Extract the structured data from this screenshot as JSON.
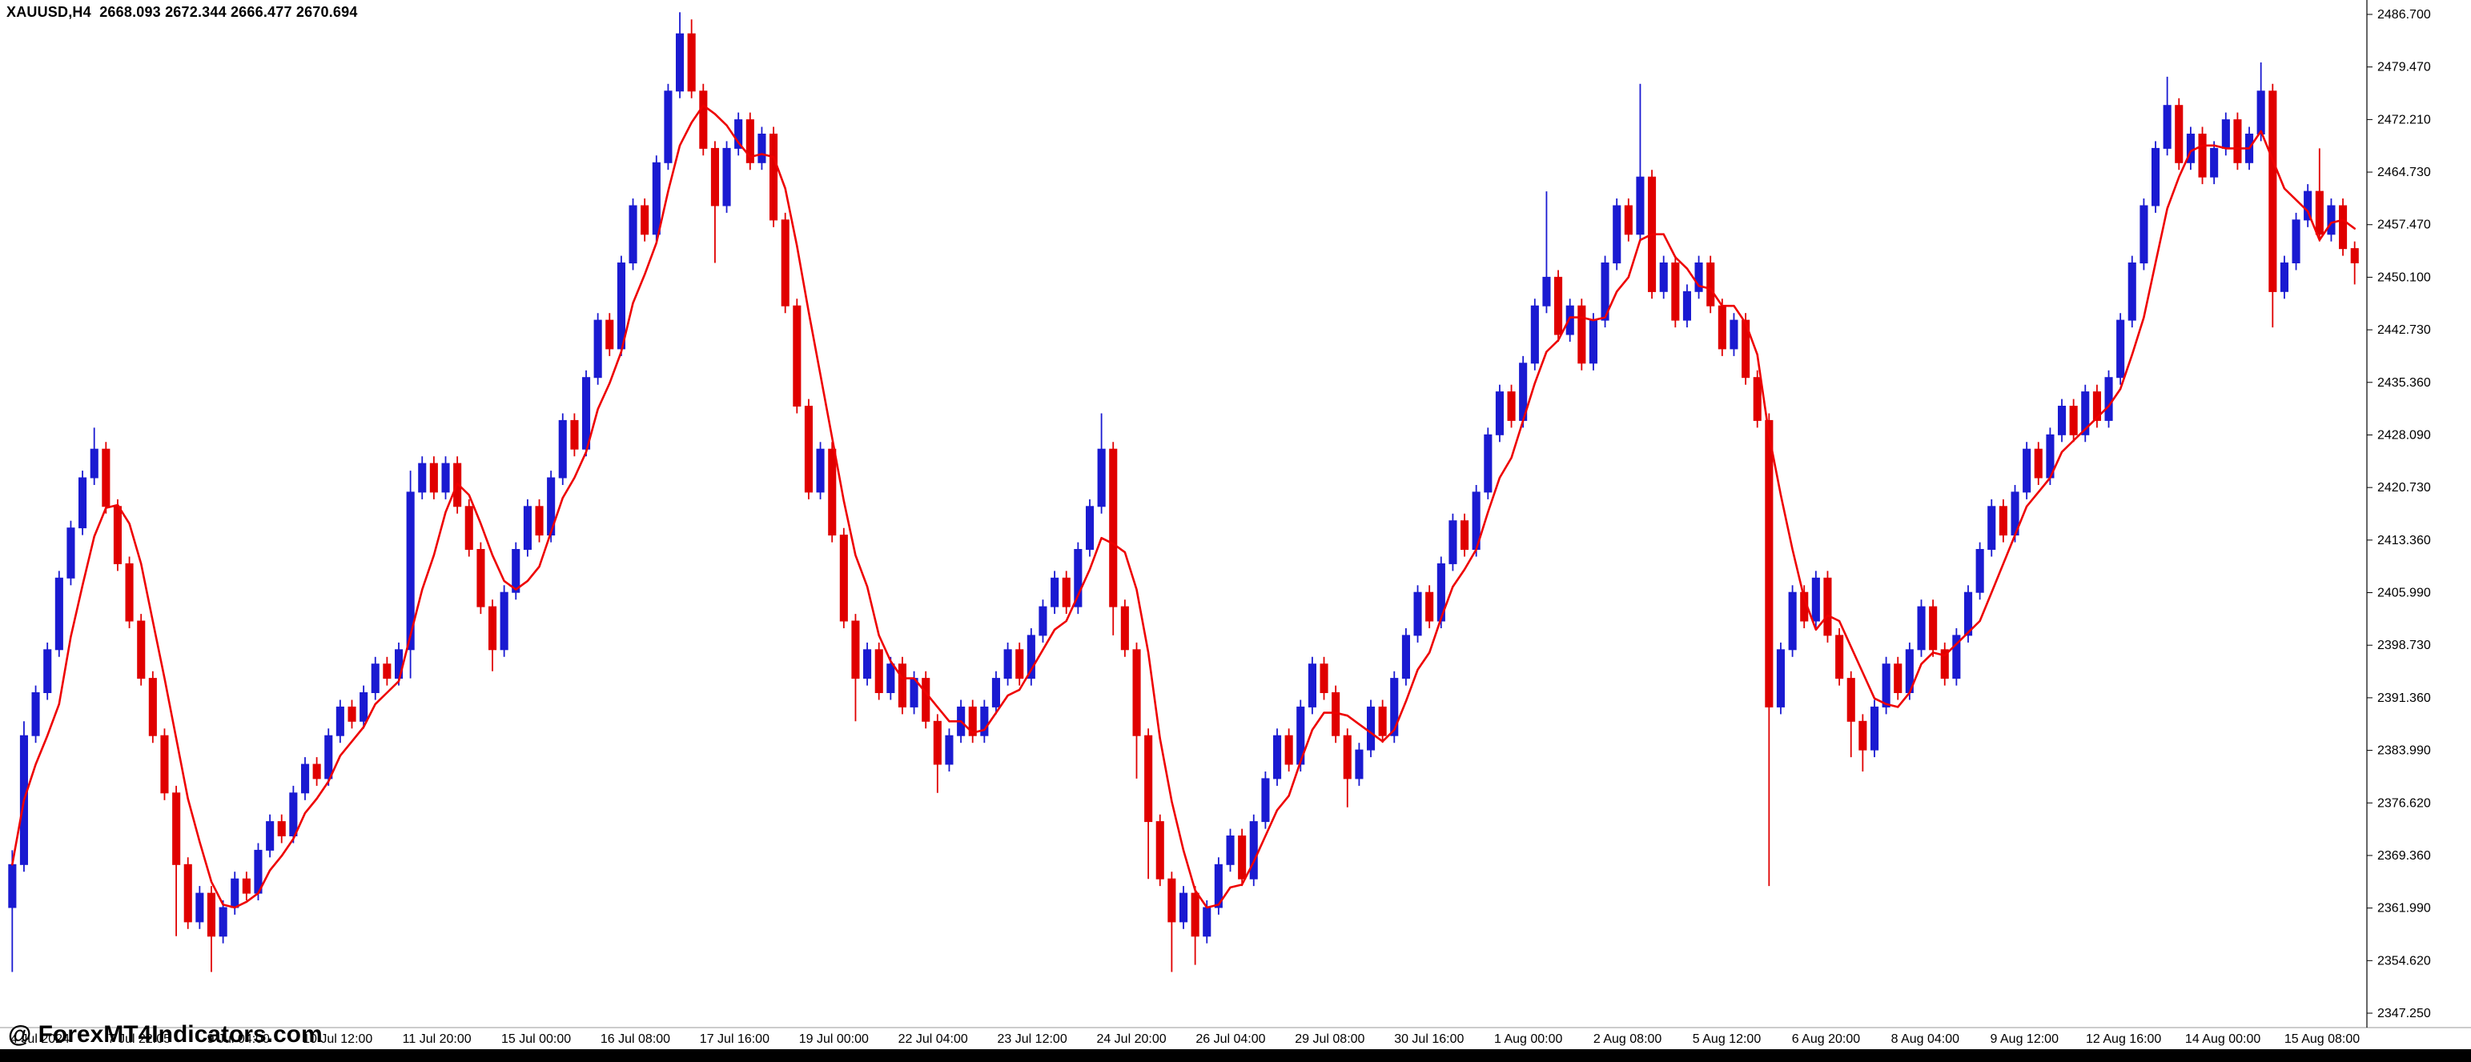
{
  "window": {
    "quote_line": "XAUUSD,H4  2668.093 2672.344 2666.477 2670.694",
    "watermark": "@ ForexMT4Indicators.com"
  },
  "colors": {
    "background": "#ffffff",
    "axis": "#000000",
    "up": "#1a1ad1",
    "down": "#e00000",
    "indicator_line": "#ee0000",
    "bottom_bar": "#000000"
  },
  "chart_data": {
    "type": "candlestick",
    "title": "XAUUSD,H4",
    "symbol": "XAUUSD",
    "timeframe": "H4",
    "quote": {
      "open": "2668.093",
      "high": "2672.344",
      "low": "2666.477",
      "close": "2670.694"
    },
    "grid": false,
    "legend": "none",
    "up_color": "#1a1ad1",
    "down_color": "#e00000",
    "overlay_line": {
      "name": "moving-average",
      "period": 5,
      "color": "#ee0000"
    },
    "ylim": [
      2345.5,
      2488.5
    ],
    "y_ticks": [
      "2486.700",
      "2479.470",
      "2472.210",
      "2464.730",
      "2457.470",
      "2450.100",
      "2442.730",
      "2435.360",
      "2428.090",
      "2420.730",
      "2413.360",
      "2405.990",
      "2398.730",
      "2391.360",
      "2383.990",
      "2376.620",
      "2369.360",
      "2361.990",
      "2354.620",
      "2347.250"
    ],
    "x_labels": [
      "4 Jul 2024",
      "7 Jul 22:05",
      "9 Jul 04:00",
      "10 Jul 12:00",
      "11 Jul 20:00",
      "15 Jul 00:00",
      "16 Jul 08:00",
      "17 Jul 16:00",
      "19 Jul 00:00",
      "22 Jul 04:00",
      "23 Jul 12:00",
      "24 Jul 20:00",
      "26 Jul 04:00",
      "29 Jul 08:00",
      "30 Jul 16:00",
      "1 Aug 00:00",
      "2 Aug 08:00",
      "5 Aug 12:00",
      "6 Aug 20:00",
      "8 Aug 04:00",
      "9 Aug 12:00",
      "12 Aug 16:00",
      "14 Aug 00:00",
      "15 Aug 08:00"
    ],
    "ohlc": [
      [
        2362,
        2370,
        2353,
        2368
      ],
      [
        2368,
        2388,
        2367,
        2386
      ],
      [
        2386,
        2393,
        2385,
        2392
      ],
      [
        2392,
        2399,
        2391,
        2398
      ],
      [
        2398,
        2409,
        2397,
        2408
      ],
      [
        2408,
        2416,
        2407,
        2415
      ],
      [
        2415,
        2423,
        2414,
        2422
      ],
      [
        2422,
        2429,
        2421,
        2426
      ],
      [
        2426,
        2427,
        2417,
        2418
      ],
      [
        2418,
        2419,
        2409,
        2410
      ],
      [
        2410,
        2411,
        2401,
        2402
      ],
      [
        2402,
        2403,
        2393,
        2394
      ],
      [
        2394,
        2395,
        2385,
        2386
      ],
      [
        2386,
        2387,
        2377,
        2378
      ],
      [
        2378,
        2379,
        2358,
        2368
      ],
      [
        2368,
        2369,
        2359,
        2360
      ],
      [
        2360,
        2365,
        2359,
        2364
      ],
      [
        2364,
        2365,
        2353,
        2358
      ],
      [
        2358,
        2363,
        2357,
        2362
      ],
      [
        2362,
        2367,
        2361,
        2366
      ],
      [
        2366,
        2367,
        2363,
        2364
      ],
      [
        2364,
        2371,
        2363,
        2370
      ],
      [
        2370,
        2375,
        2369,
        2374
      ],
      [
        2374,
        2375,
        2371,
        2372
      ],
      [
        2372,
        2379,
        2371,
        2378
      ],
      [
        2378,
        2383,
        2377,
        2382
      ],
      [
        2382,
        2383,
        2379,
        2380
      ],
      [
        2380,
        2387,
        2379,
        2386
      ],
      [
        2386,
        2391,
        2385,
        2390
      ],
      [
        2390,
        2391,
        2387,
        2388
      ],
      [
        2388,
        2393,
        2387,
        2392
      ],
      [
        2392,
        2397,
        2391,
        2396
      ],
      [
        2396,
        2397,
        2393,
        2394
      ],
      [
        2394,
        2399,
        2393,
        2398
      ],
      [
        2398,
        2423,
        2394,
        2420
      ],
      [
        2420,
        2425,
        2419,
        2424
      ],
      [
        2424,
        2425,
        2419,
        2420
      ],
      [
        2420,
        2425,
        2419,
        2424
      ],
      [
        2424,
        2425,
        2417,
        2418
      ],
      [
        2418,
        2419,
        2411,
        2412
      ],
      [
        2412,
        2413,
        2403,
        2404
      ],
      [
        2404,
        2405,
        2395,
        2398
      ],
      [
        2398,
        2407,
        2397,
        2406
      ],
      [
        2406,
        2413,
        2405,
        2412
      ],
      [
        2412,
        2419,
        2411,
        2418
      ],
      [
        2418,
        2419,
        2413,
        2414
      ],
      [
        2414,
        2423,
        2413,
        2422
      ],
      [
        2422,
        2431,
        2421,
        2430
      ],
      [
        2430,
        2431,
        2425,
        2426
      ],
      [
        2426,
        2437,
        2425,
        2436
      ],
      [
        2436,
        2445,
        2435,
        2444
      ],
      [
        2444,
        2445,
        2439,
        2440
      ],
      [
        2440,
        2453,
        2439,
        2452
      ],
      [
        2452,
        2461,
        2451,
        2460
      ],
      [
        2460,
        2461,
        2455,
        2456
      ],
      [
        2456,
        2467,
        2455,
        2466
      ],
      [
        2466,
        2477,
        2465,
        2476
      ],
      [
        2476,
        2487,
        2475,
        2484
      ],
      [
        2484,
        2486,
        2475,
        2476
      ],
      [
        2476,
        2477,
        2467,
        2468
      ],
      [
        2468,
        2469,
        2452,
        2460
      ],
      [
        2460,
        2469,
        2459,
        2468
      ],
      [
        2468,
        2473,
        2467,
        2472
      ],
      [
        2472,
        2473,
        2465,
        2466
      ],
      [
        2466,
        2471,
        2465,
        2470
      ],
      [
        2470,
        2471,
        2457,
        2458
      ],
      [
        2458,
        2459,
        2445,
        2446
      ],
      [
        2446,
        2447,
        2431,
        2432
      ],
      [
        2432,
        2433,
        2419,
        2420
      ],
      [
        2420,
        2427,
        2419,
        2426
      ],
      [
        2426,
        2427,
        2413,
        2414
      ],
      [
        2414,
        2415,
        2401,
        2402
      ],
      [
        2402,
        2403,
        2388,
        2394
      ],
      [
        2394,
        2399,
        2393,
        2398
      ],
      [
        2398,
        2399,
        2391,
        2392
      ],
      [
        2392,
        2397,
        2391,
        2396
      ],
      [
        2396,
        2397,
        2389,
        2390
      ],
      [
        2390,
        2395,
        2389,
        2394
      ],
      [
        2394,
        2395,
        2387,
        2388
      ],
      [
        2388,
        2389,
        2378,
        2382
      ],
      [
        2382,
        2387,
        2381,
        2386
      ],
      [
        2386,
        2391,
        2385,
        2390
      ],
      [
        2390,
        2391,
        2385,
        2386
      ],
      [
        2386,
        2391,
        2385,
        2390
      ],
      [
        2390,
        2395,
        2389,
        2394
      ],
      [
        2394,
        2399,
        2393,
        2398
      ],
      [
        2398,
        2399,
        2393,
        2394
      ],
      [
        2394,
        2401,
        2393,
        2400
      ],
      [
        2400,
        2405,
        2399,
        2404
      ],
      [
        2404,
        2409,
        2403,
        2408
      ],
      [
        2408,
        2409,
        2403,
        2404
      ],
      [
        2404,
        2413,
        2403,
        2412
      ],
      [
        2412,
        2419,
        2411,
        2418
      ],
      [
        2418,
        2431,
        2417,
        2426
      ],
      [
        2426,
        2427,
        2400,
        2404
      ],
      [
        2404,
        2405,
        2397,
        2398
      ],
      [
        2398,
        2399,
        2380,
        2386
      ],
      [
        2386,
        2387,
        2366,
        2374
      ],
      [
        2374,
        2375,
        2365,
        2366
      ],
      [
        2366,
        2367,
        2353,
        2360
      ],
      [
        2360,
        2365,
        2359,
        2364
      ],
      [
        2364,
        2365,
        2354,
        2358
      ],
      [
        2358,
        2363,
        2357,
        2362
      ],
      [
        2362,
        2369,
        2361,
        2368
      ],
      [
        2368,
        2373,
        2367,
        2372
      ],
      [
        2372,
        2373,
        2365,
        2366
      ],
      [
        2366,
        2375,
        2365,
        2374
      ],
      [
        2374,
        2381,
        2373,
        2380
      ],
      [
        2380,
        2387,
        2379,
        2386
      ],
      [
        2386,
        2387,
        2381,
        2382
      ],
      [
        2382,
        2391,
        2381,
        2390
      ],
      [
        2390,
        2397,
        2389,
        2396
      ],
      [
        2396,
        2397,
        2391,
        2392
      ],
      [
        2392,
        2393,
        2385,
        2386
      ],
      [
        2386,
        2387,
        2376,
        2380
      ],
      [
        2380,
        2385,
        2379,
        2384
      ],
      [
        2384,
        2391,
        2383,
        2390
      ],
      [
        2390,
        2391,
        2385,
        2386
      ],
      [
        2386,
        2395,
        2385,
        2394
      ],
      [
        2394,
        2401,
        2393,
        2400
      ],
      [
        2400,
        2407,
        2399,
        2406
      ],
      [
        2406,
        2407,
        2401,
        2402
      ],
      [
        2402,
        2411,
        2401,
        2410
      ],
      [
        2410,
        2417,
        2409,
        2416
      ],
      [
        2416,
        2417,
        2411,
        2412
      ],
      [
        2412,
        2421,
        2411,
        2420
      ],
      [
        2420,
        2429,
        2419,
        2428
      ],
      [
        2428,
        2435,
        2427,
        2434
      ],
      [
        2434,
        2435,
        2429,
        2430
      ],
      [
        2430,
        2439,
        2429,
        2438
      ],
      [
        2438,
        2447,
        2437,
        2446
      ],
      [
        2446,
        2462,
        2445,
        2450
      ],
      [
        2450,
        2451,
        2441,
        2442
      ],
      [
        2442,
        2447,
        2441,
        2446
      ],
      [
        2446,
        2447,
        2437,
        2438
      ],
      [
        2438,
        2445,
        2437,
        2444
      ],
      [
        2444,
        2453,
        2443,
        2452
      ],
      [
        2452,
        2461,
        2451,
        2460
      ],
      [
        2460,
        2461,
        2455,
        2456
      ],
      [
        2456,
        2477,
        2455,
        2464
      ],
      [
        2464,
        2465,
        2447,
        2448
      ],
      [
        2448,
        2453,
        2447,
        2452
      ],
      [
        2452,
        2453,
        2443,
        2444
      ],
      [
        2444,
        2449,
        2443,
        2448
      ],
      [
        2448,
        2453,
        2447,
        2452
      ],
      [
        2452,
        2453,
        2445,
        2446
      ],
      [
        2446,
        2447,
        2439,
        2440
      ],
      [
        2440,
        2445,
        2439,
        2444
      ],
      [
        2444,
        2445,
        2435,
        2436
      ],
      [
        2436,
        2437,
        2429,
        2430
      ],
      [
        2430,
        2431,
        2365,
        2390
      ],
      [
        2390,
        2399,
        2389,
        2398
      ],
      [
        2398,
        2407,
        2397,
        2406
      ],
      [
        2406,
        2407,
        2401,
        2402
      ],
      [
        2402,
        2409,
        2401,
        2408
      ],
      [
        2408,
        2409,
        2399,
        2400
      ],
      [
        2400,
        2401,
        2393,
        2394
      ],
      [
        2394,
        2395,
        2383,
        2388
      ],
      [
        2388,
        2389,
        2381,
        2384
      ],
      [
        2384,
        2391,
        2383,
        2390
      ],
      [
        2390,
        2397,
        2389,
        2396
      ],
      [
        2396,
        2397,
        2391,
        2392
      ],
      [
        2392,
        2399,
        2391,
        2398
      ],
      [
        2398,
        2405,
        2397,
        2404
      ],
      [
        2404,
        2405,
        2397,
        2398
      ],
      [
        2398,
        2399,
        2393,
        2394
      ],
      [
        2394,
        2401,
        2393,
        2400
      ],
      [
        2400,
        2407,
        2399,
        2406
      ],
      [
        2406,
        2413,
        2405,
        2412
      ],
      [
        2412,
        2419,
        2411,
        2418
      ],
      [
        2418,
        2419,
        2413,
        2414
      ],
      [
        2414,
        2421,
        2413,
        2420
      ],
      [
        2420,
        2427,
        2419,
        2426
      ],
      [
        2426,
        2427,
        2421,
        2422
      ],
      [
        2422,
        2429,
        2421,
        2428
      ],
      [
        2428,
        2433,
        2427,
        2432
      ],
      [
        2432,
        2433,
        2427,
        2428
      ],
      [
        2428,
        2435,
        2427,
        2434
      ],
      [
        2434,
        2435,
        2429,
        2430
      ],
      [
        2430,
        2437,
        2429,
        2436
      ],
      [
        2436,
        2445,
        2435,
        2444
      ],
      [
        2444,
        2453,
        2443,
        2452
      ],
      [
        2452,
        2461,
        2451,
        2460
      ],
      [
        2460,
        2469,
        2459,
        2468
      ],
      [
        2468,
        2478,
        2467,
        2474
      ],
      [
        2474,
        2475,
        2465,
        2466
      ],
      [
        2466,
        2471,
        2465,
        2470
      ],
      [
        2470,
        2471,
        2463,
        2464
      ],
      [
        2464,
        2469,
        2463,
        2468
      ],
      [
        2468,
        2473,
        2467,
        2472
      ],
      [
        2472,
        2473,
        2465,
        2466
      ],
      [
        2466,
        2471,
        2465,
        2470
      ],
      [
        2470,
        2480,
        2469,
        2476
      ],
      [
        2476,
        2477,
        2443,
        2448
      ],
      [
        2448,
        2453,
        2447,
        2452
      ],
      [
        2452,
        2459,
        2451,
        2458
      ],
      [
        2458,
        2463,
        2457,
        2462
      ],
      [
        2462,
        2468,
        2455,
        2456
      ],
      [
        2456,
        2461,
        2455,
        2460
      ],
      [
        2460,
        2461,
        2453,
        2454
      ],
      [
        2454,
        2455,
        2449,
        2452
      ]
    ]
  }
}
